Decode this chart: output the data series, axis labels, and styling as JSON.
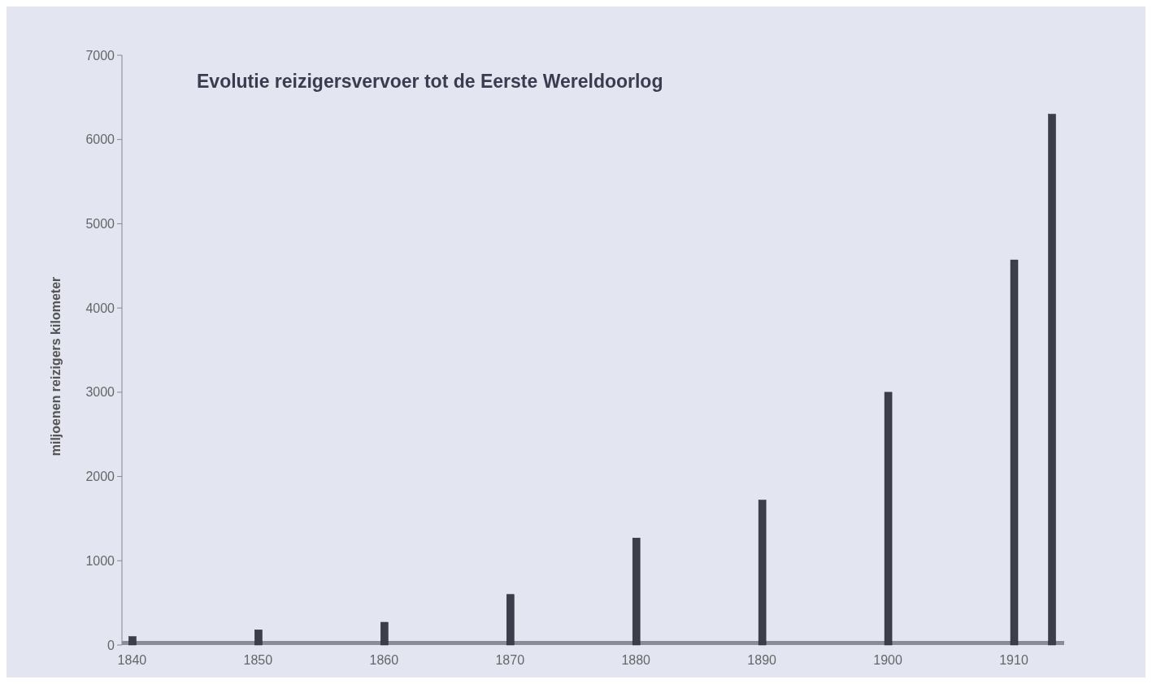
{
  "chart_data": {
    "type": "bar",
    "title": "Evolutie reizigersvervoer tot de Eerste Wereldoorlog",
    "ylabel": "miljoenen reizigers kilometer",
    "x": [
      1840,
      1850,
      1860,
      1870,
      1880,
      1890,
      1900,
      1910,
      1913
    ],
    "values": [
      100,
      180,
      270,
      600,
      1270,
      1720,
      3000,
      4570,
      6300
    ],
    "color": "#3c3e4c",
    "xlim": [
      1839.2,
      1914
    ],
    "xticks": [
      1840,
      1850,
      1860,
      1870,
      1880,
      1890,
      1900,
      1910
    ],
    "ylim": [
      0,
      7000
    ],
    "yticks": [
      0,
      1000,
      2000,
      3000,
      4000,
      5000,
      6000,
      7000
    ],
    "grid": false
  }
}
